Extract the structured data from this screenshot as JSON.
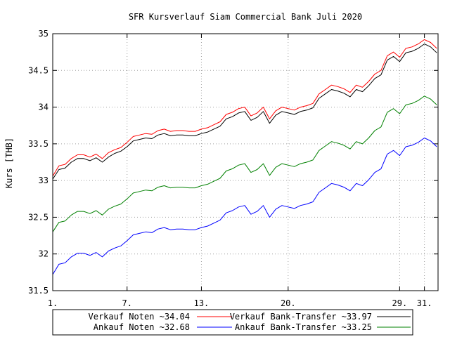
{
  "chart_data": {
    "type": "line",
    "title": "SFR Kursverlauf Siam Commercial Bank Juli 2020",
    "xlabel": "",
    "ylabel": "Kurs [THB]",
    "ylim": [
      31.5,
      35
    ],
    "xlim": [
      1,
      32.1
    ],
    "yticks": [
      "31.5",
      "32",
      "32.5",
      "33",
      "33.5",
      "34",
      "34.5",
      "35"
    ],
    "xticks": [
      {
        "value": 1,
        "label": "1."
      },
      {
        "value": 7,
        "label": "7."
      },
      {
        "value": 13,
        "label": "13."
      },
      {
        "value": 20,
        "label": "20."
      },
      {
        "value": 29,
        "label": "29."
      },
      {
        "value": 31,
        "label": "31."
      }
    ],
    "grid": true,
    "legend_position": "bottom",
    "legend": [
      {
        "label": "Verkauf Noten ~34.04",
        "color": "#ff0000"
      },
      {
        "label": "Verkauf Bank-Transfer ~33.97",
        "color": "#000000"
      },
      {
        "label": "Ankauf Noten ~32.68",
        "color": "#0000ff"
      },
      {
        "label": "Ankauf Bank-Transfer ~33.25",
        "color": "#008000"
      }
    ],
    "series": [
      {
        "name": "Verkauf Noten ~34.04",
        "color": "#ff0000",
        "x": [
          1,
          1.5,
          2,
          2.5,
          3,
          3.5,
          4,
          4.5,
          5,
          5.5,
          6,
          6.5,
          7,
          7.5,
          8,
          8.5,
          9,
          9.5,
          10,
          10.5,
          11,
          11.5,
          12,
          12.5,
          13,
          13.5,
          14,
          14.5,
          15,
          15.5,
          16,
          16.5,
          17,
          17.5,
          18,
          18.5,
          19,
          19.5,
          20,
          20.5,
          21,
          21.5,
          22,
          22.5,
          23,
          23.5,
          24,
          24.5,
          25,
          25.5,
          26,
          26.5,
          27,
          27.5,
          28,
          28.5,
          29,
          29.5,
          30,
          30.5,
          31,
          31.5,
          32
        ],
        "values": [
          33.06,
          33.2,
          33.22,
          33.3,
          33.35,
          33.35,
          33.32,
          33.36,
          33.3,
          33.38,
          33.42,
          33.45,
          33.52,
          33.6,
          33.62,
          33.64,
          33.63,
          33.68,
          33.7,
          33.67,
          33.68,
          33.68,
          33.67,
          33.67,
          33.7,
          33.72,
          33.76,
          33.8,
          33.9,
          33.93,
          33.98,
          34.0,
          33.88,
          33.92,
          34.0,
          33.84,
          33.95,
          34.0,
          33.98,
          33.96,
          34.0,
          34.02,
          34.05,
          34.18,
          34.24,
          34.3,
          34.28,
          34.25,
          34.2,
          34.3,
          34.27,
          34.35,
          34.45,
          34.5,
          34.7,
          34.75,
          34.68,
          34.8,
          34.82,
          34.86,
          34.92,
          34.88,
          34.8
        ]
      },
      {
        "name": "Verkauf Bank-Transfer ~33.97",
        "color": "#000000",
        "x": [
          1,
          1.5,
          2,
          2.5,
          3,
          3.5,
          4,
          4.5,
          5,
          5.5,
          6,
          6.5,
          7,
          7.5,
          8,
          8.5,
          9,
          9.5,
          10,
          10.5,
          11,
          11.5,
          12,
          12.5,
          13,
          13.5,
          14,
          14.5,
          15,
          15.5,
          16,
          16.5,
          17,
          17.5,
          18,
          18.5,
          19,
          19.5,
          20,
          20.5,
          21,
          21.5,
          22,
          22.5,
          23,
          23.5,
          24,
          24.5,
          25,
          25.5,
          26,
          26.5,
          27,
          27.5,
          28,
          28.5,
          29,
          29.5,
          30,
          30.5,
          31,
          31.5,
          32
        ],
        "values": [
          33.02,
          33.15,
          33.17,
          33.25,
          33.3,
          33.3,
          33.27,
          33.31,
          33.25,
          33.32,
          33.37,
          33.4,
          33.46,
          33.54,
          33.56,
          33.58,
          33.57,
          33.62,
          33.64,
          33.61,
          33.62,
          33.62,
          33.61,
          33.61,
          33.64,
          33.66,
          33.7,
          33.74,
          33.84,
          33.87,
          33.92,
          33.94,
          33.82,
          33.86,
          33.94,
          33.78,
          33.89,
          33.94,
          33.92,
          33.9,
          33.94,
          33.96,
          33.99,
          34.12,
          34.18,
          34.24,
          34.22,
          34.19,
          34.14,
          34.24,
          34.21,
          34.29,
          34.39,
          34.44,
          34.64,
          34.69,
          34.62,
          34.74,
          34.76,
          34.8,
          34.86,
          34.82,
          34.74
        ]
      },
      {
        "name": "Ankauf Noten ~32.68",
        "color": "#0000ff",
        "x": [
          1,
          1.5,
          2,
          2.5,
          3,
          3.5,
          4,
          4.5,
          5,
          5.5,
          6,
          6.5,
          7,
          7.5,
          8,
          8.5,
          9,
          9.5,
          10,
          10.5,
          11,
          11.5,
          12,
          12.5,
          13,
          13.5,
          14,
          14.5,
          15,
          15.5,
          16,
          16.5,
          17,
          17.5,
          18,
          18.5,
          19,
          19.5,
          20,
          20.5,
          21,
          21.5,
          22,
          22.5,
          23,
          23.5,
          24,
          24.5,
          25,
          25.5,
          26,
          26.5,
          27,
          27.5,
          28,
          28.5,
          29,
          29.5,
          30,
          30.5,
          31,
          31.5,
          32
        ],
        "values": [
          31.72,
          31.86,
          31.88,
          31.96,
          32.01,
          32.01,
          31.98,
          32.02,
          31.96,
          32.04,
          32.08,
          32.11,
          32.18,
          32.26,
          32.28,
          32.3,
          32.29,
          32.34,
          32.36,
          32.33,
          32.34,
          32.34,
          32.33,
          32.33,
          32.36,
          32.38,
          32.42,
          32.46,
          32.56,
          32.59,
          32.64,
          32.66,
          32.54,
          32.58,
          32.66,
          32.5,
          32.61,
          32.66,
          32.64,
          32.62,
          32.66,
          32.68,
          32.71,
          32.84,
          32.9,
          32.96,
          32.94,
          32.91,
          32.86,
          32.96,
          32.93,
          33.01,
          33.11,
          33.16,
          33.36,
          33.41,
          33.34,
          33.46,
          33.48,
          33.52,
          33.58,
          33.54,
          33.46
        ]
      },
      {
        "name": "Ankauf Bank-Transfer ~33.25",
        "color": "#008000",
        "x": [
          1,
          1.5,
          2,
          2.5,
          3,
          3.5,
          4,
          4.5,
          5,
          5.5,
          6,
          6.5,
          7,
          7.5,
          8,
          8.5,
          9,
          9.5,
          10,
          10.5,
          11,
          11.5,
          12,
          12.5,
          13,
          13.5,
          14,
          14.5,
          15,
          15.5,
          16,
          16.5,
          17,
          17.5,
          18,
          18.5,
          19,
          19.5,
          20,
          20.5,
          21,
          21.5,
          22,
          22.5,
          23,
          23.5,
          24,
          24.5,
          25,
          25.5,
          26,
          26.5,
          27,
          27.5,
          28,
          28.5,
          29,
          29.5,
          30,
          30.5,
          31,
          31.5,
          32
        ],
        "values": [
          32.3,
          32.43,
          32.45,
          32.53,
          32.58,
          32.58,
          32.55,
          32.59,
          32.53,
          32.61,
          32.65,
          32.68,
          32.75,
          32.83,
          32.85,
          32.87,
          32.86,
          32.91,
          32.93,
          32.9,
          32.91,
          32.91,
          32.9,
          32.9,
          32.93,
          32.95,
          32.99,
          33.03,
          33.13,
          33.16,
          33.21,
          33.23,
          33.11,
          33.15,
          33.23,
          33.07,
          33.18,
          33.23,
          33.21,
          33.19,
          33.23,
          33.25,
          33.28,
          33.41,
          33.47,
          33.53,
          33.51,
          33.48,
          33.43,
          33.53,
          33.5,
          33.58,
          33.68,
          33.73,
          33.93,
          33.98,
          33.91,
          34.03,
          34.05,
          34.09,
          34.15,
          34.11,
          34.03
        ]
      }
    ]
  }
}
